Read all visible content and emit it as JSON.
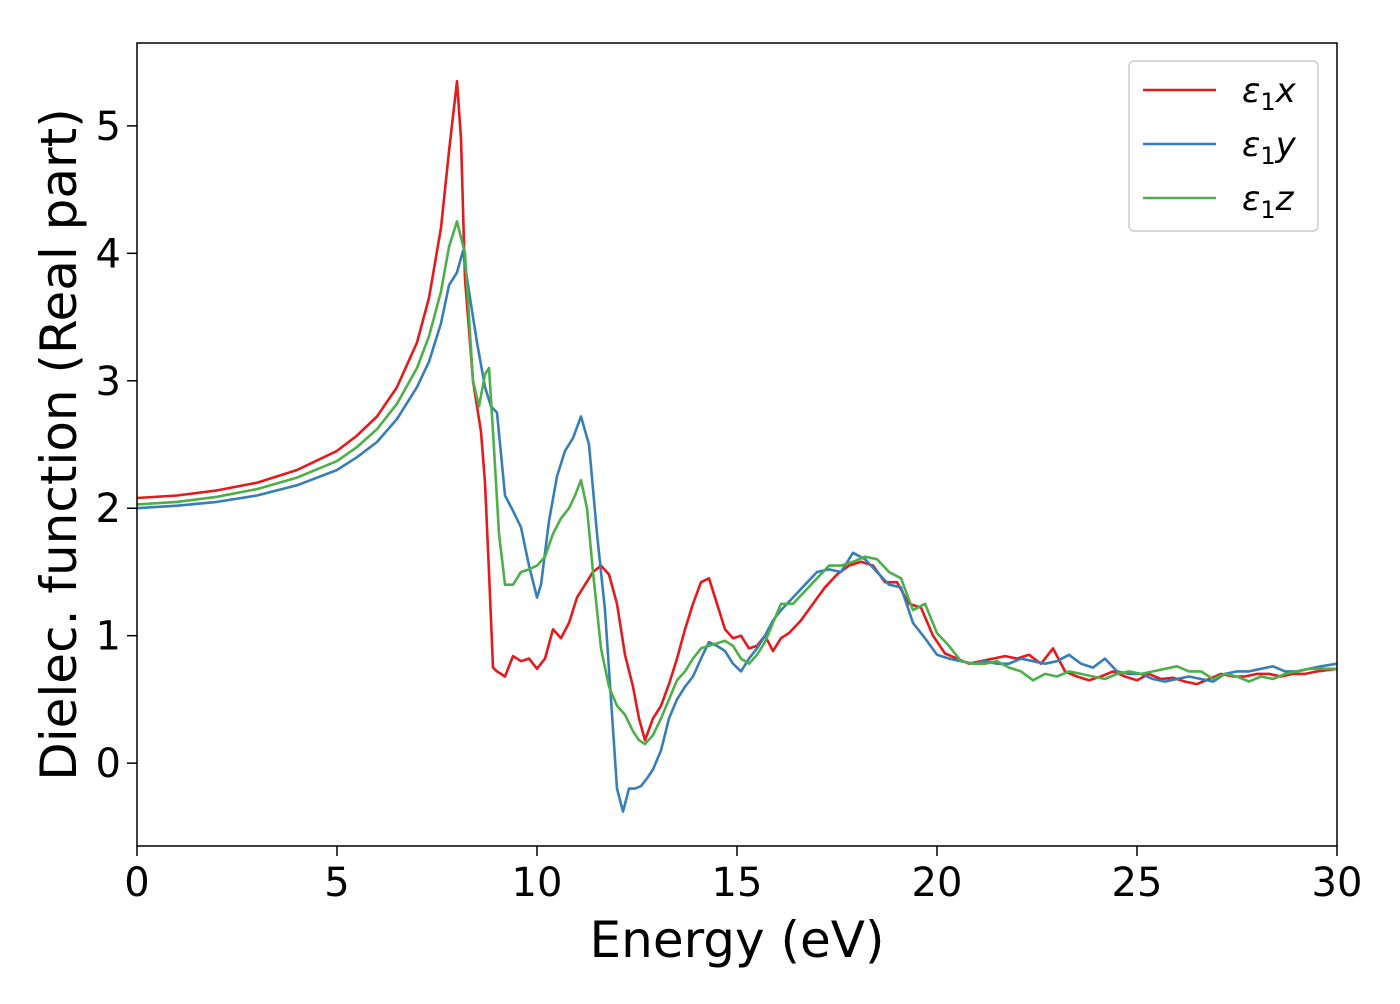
{
  "chart_data": {
    "type": "line",
    "xlabel": "Energy (eV)",
    "ylabel": "Dielec. function (Real part)",
    "xlim": [
      0,
      30
    ],
    "ylim": [
      -0.65,
      5.65
    ],
    "xticks": [
      "0",
      "5",
      "10",
      "15",
      "20",
      "25",
      "30"
    ],
    "yticks": [
      "0",
      "1",
      "2",
      "3",
      "4",
      "5"
    ],
    "grid": false,
    "legend_position": "top-right",
    "series": [
      {
        "name": "ε₁x",
        "legend_base": "ε",
        "legend_sub": "1",
        "legend_suffix": "x",
        "color": "#e41a1c",
        "x": [
          0,
          1,
          2,
          3,
          4,
          5,
          5.5,
          6,
          6.5,
          7,
          7.3,
          7.6,
          7.8,
          8.0,
          8.1,
          8.2,
          8.4,
          8.6,
          8.7,
          8.8,
          8.9,
          9.0,
          9.2,
          9.4,
          9.6,
          9.8,
          10.0,
          10.2,
          10.4,
          10.6,
          10.8,
          11.0,
          11.2,
          11.4,
          11.6,
          11.8,
          12.0,
          12.2,
          12.4,
          12.55,
          12.7,
          12.9,
          13.1,
          13.3,
          13.5,
          13.7,
          13.9,
          14.1,
          14.3,
          14.5,
          14.7,
          14.9,
          15.1,
          15.3,
          15.5,
          15.7,
          15.9,
          16.1,
          16.3,
          16.6,
          16.9,
          17.2,
          17.5,
          17.8,
          18.1,
          18.4,
          18.7,
          19.0,
          19.3,
          19.6,
          19.9,
          20.2,
          20.5,
          20.8,
          21.1,
          21.4,
          21.7,
          22.0,
          22.3,
          22.6,
          22.9,
          23.2,
          23.5,
          23.8,
          24.1,
          24.4,
          24.7,
          25.0,
          25.3,
          25.6,
          25.9,
          26.2,
          26.5,
          26.8,
          27.1,
          27.4,
          27.7,
          28.0,
          28.3,
          28.6,
          28.9,
          29.2,
          29.5,
          30
        ],
        "y": [
          2.08,
          2.1,
          2.14,
          2.2,
          2.3,
          2.45,
          2.57,
          2.72,
          2.95,
          3.3,
          3.65,
          4.2,
          4.8,
          5.35,
          4.9,
          3.8,
          3.0,
          2.6,
          2.2,
          1.5,
          0.75,
          0.72,
          0.68,
          0.84,
          0.8,
          0.82,
          0.74,
          0.82,
          1.05,
          0.98,
          1.1,
          1.3,
          1.4,
          1.5,
          1.55,
          1.48,
          1.25,
          0.85,
          0.6,
          0.35,
          0.18,
          0.35,
          0.45,
          0.62,
          0.82,
          1.05,
          1.25,
          1.42,
          1.45,
          1.25,
          1.05,
          0.98,
          1.0,
          0.9,
          0.92,
          1.0,
          0.88,
          0.98,
          1.02,
          1.12,
          1.25,
          1.38,
          1.48,
          1.55,
          1.58,
          1.55,
          1.42,
          1.42,
          1.25,
          1.22,
          1.0,
          0.86,
          0.82,
          0.78,
          0.8,
          0.82,
          0.84,
          0.82,
          0.85,
          0.78,
          0.9,
          0.72,
          0.68,
          0.65,
          0.68,
          0.72,
          0.68,
          0.65,
          0.7,
          0.66,
          0.67,
          0.64,
          0.62,
          0.66,
          0.7,
          0.68,
          0.68,
          0.7,
          0.7,
          0.68,
          0.7,
          0.7,
          0.72,
          0.74
        ]
      },
      {
        "name": "ε₁y",
        "legend_base": "ε",
        "legend_sub": "1",
        "legend_suffix": "y",
        "color": "#377eb8",
        "x": [
          0,
          1,
          2,
          3,
          4,
          5,
          5.5,
          6,
          6.5,
          7,
          7.3,
          7.6,
          7.8,
          8.0,
          8.15,
          8.3,
          8.5,
          8.7,
          8.85,
          9.0,
          9.2,
          9.4,
          9.6,
          9.8,
          10.0,
          10.1,
          10.3,
          10.5,
          10.7,
          10.9,
          11.1,
          11.3,
          11.5,
          11.7,
          11.85,
          12.0,
          12.15,
          12.3,
          12.45,
          12.6,
          12.75,
          12.9,
          13.1,
          13.3,
          13.5,
          13.7,
          13.9,
          14.1,
          14.3,
          14.5,
          14.7,
          14.9,
          15.1,
          15.3,
          15.5,
          15.7,
          15.9,
          16.1,
          16.4,
          16.7,
          17.0,
          17.3,
          17.6,
          17.9,
          18.2,
          18.5,
          18.8,
          19.1,
          19.4,
          19.7,
          20.0,
          20.3,
          20.6,
          20.9,
          21.2,
          21.5,
          21.8,
          22.1,
          22.4,
          22.7,
          23.0,
          23.3,
          23.6,
          23.9,
          24.2,
          24.5,
          24.8,
          25.1,
          25.4,
          25.7,
          26.0,
          26.3,
          26.6,
          26.9,
          27.2,
          27.5,
          27.8,
          28.1,
          28.4,
          28.7,
          29.0,
          29.3,
          29.6,
          30
        ],
        "y": [
          2.0,
          2.02,
          2.05,
          2.1,
          2.18,
          2.3,
          2.4,
          2.52,
          2.7,
          2.95,
          3.15,
          3.45,
          3.75,
          3.85,
          4.02,
          3.7,
          3.3,
          2.95,
          2.8,
          2.75,
          2.1,
          1.98,
          1.85,
          1.55,
          1.3,
          1.4,
          1.9,
          2.25,
          2.45,
          2.55,
          2.72,
          2.5,
          1.8,
          1.2,
          0.5,
          -0.2,
          -0.38,
          -0.2,
          -0.2,
          -0.18,
          -0.12,
          -0.05,
          0.1,
          0.35,
          0.5,
          0.6,
          0.68,
          0.82,
          0.95,
          0.92,
          0.88,
          0.78,
          0.72,
          0.82,
          0.9,
          1.0,
          1.12,
          1.2,
          1.3,
          1.4,
          1.5,
          1.52,
          1.5,
          1.65,
          1.6,
          1.5,
          1.4,
          1.38,
          1.1,
          0.98,
          0.85,
          0.82,
          0.8,
          0.78,
          0.8,
          0.78,
          0.78,
          0.82,
          0.8,
          0.78,
          0.8,
          0.85,
          0.78,
          0.75,
          0.82,
          0.72,
          0.7,
          0.7,
          0.66,
          0.64,
          0.66,
          0.68,
          0.66,
          0.64,
          0.7,
          0.72,
          0.72,
          0.74,
          0.76,
          0.72,
          0.72,
          0.74,
          0.76,
          0.78
        ]
      },
      {
        "name": "ε₁z",
        "legend_base": "ε",
        "legend_sub": "1",
        "legend_suffix": "z",
        "color": "#4daf4a",
        "x": [
          0,
          1,
          2,
          3,
          4,
          5,
          5.5,
          6,
          6.5,
          7,
          7.3,
          7.6,
          7.8,
          8.0,
          8.2,
          8.4,
          8.55,
          8.7,
          8.8,
          8.9,
          9.05,
          9.2,
          9.4,
          9.6,
          9.8,
          10.0,
          10.2,
          10.4,
          10.6,
          10.8,
          10.95,
          11.1,
          11.25,
          11.4,
          11.6,
          11.8,
          12.0,
          12.2,
          12.4,
          12.55,
          12.7,
          12.9,
          13.1,
          13.3,
          13.5,
          13.7,
          13.9,
          14.1,
          14.3,
          14.5,
          14.7,
          14.9,
          15.1,
          15.3,
          15.5,
          15.7,
          15.9,
          16.1,
          16.4,
          16.7,
          17.0,
          17.3,
          17.6,
          17.9,
          18.2,
          18.5,
          18.8,
          19.1,
          19.4,
          19.7,
          20.0,
          20.3,
          20.6,
          20.9,
          21.2,
          21.5,
          21.8,
          22.1,
          22.4,
          22.7,
          23.0,
          23.3,
          23.6,
          23.9,
          24.2,
          24.5,
          24.8,
          25.1,
          25.4,
          25.7,
          26.0,
          26.3,
          26.6,
          26.9,
          27.2,
          27.5,
          27.8,
          28.1,
          28.4,
          28.7,
          29.0,
          29.3,
          29.6,
          30
        ],
        "y": [
          2.03,
          2.05,
          2.09,
          2.15,
          2.24,
          2.37,
          2.48,
          2.62,
          2.82,
          3.1,
          3.35,
          3.7,
          4.05,
          4.25,
          4.0,
          3.0,
          2.8,
          3.05,
          3.1,
          2.6,
          1.8,
          1.4,
          1.4,
          1.5,
          1.52,
          1.55,
          1.62,
          1.8,
          1.92,
          2.0,
          2.1,
          2.22,
          2.0,
          1.5,
          0.9,
          0.6,
          0.45,
          0.38,
          0.25,
          0.18,
          0.15,
          0.22,
          0.35,
          0.5,
          0.65,
          0.72,
          0.82,
          0.9,
          0.92,
          0.94,
          0.96,
          0.92,
          0.82,
          0.78,
          0.85,
          0.95,
          1.1,
          1.25,
          1.25,
          1.35,
          1.45,
          1.55,
          1.55,
          1.58,
          1.62,
          1.6,
          1.5,
          1.45,
          1.2,
          1.25,
          1.02,
          0.92,
          0.8,
          0.78,
          0.78,
          0.8,
          0.75,
          0.72,
          0.65,
          0.7,
          0.68,
          0.72,
          0.7,
          0.68,
          0.66,
          0.7,
          0.72,
          0.7,
          0.72,
          0.74,
          0.76,
          0.72,
          0.72,
          0.66,
          0.7,
          0.68,
          0.64,
          0.68,
          0.66,
          0.7,
          0.72,
          0.74,
          0.74,
          0.74
        ]
      }
    ]
  }
}
